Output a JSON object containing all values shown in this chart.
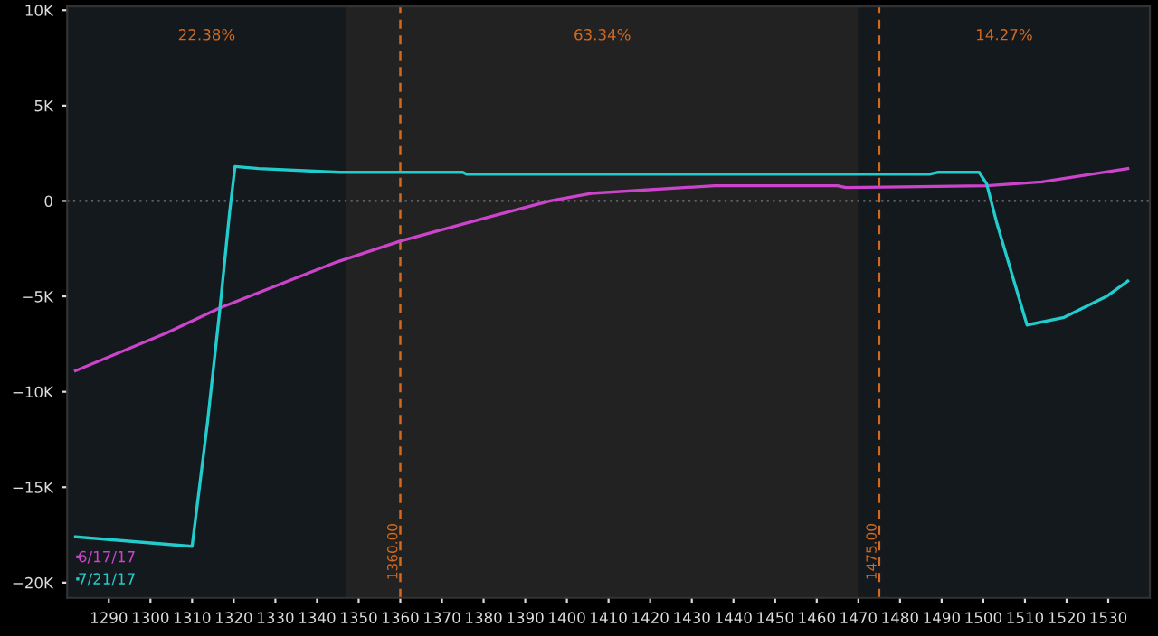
{
  "chart_data": {
    "type": "line",
    "xlim": [
      1280,
      1540
    ],
    "ylim": [
      -20800,
      10200
    ],
    "xticks": [
      1290,
      1300,
      1310,
      1320,
      1330,
      1340,
      1350,
      1360,
      1370,
      1380,
      1390,
      1400,
      1410,
      1420,
      1430,
      1440,
      1450,
      1460,
      1470,
      1480,
      1490,
      1500,
      1510,
      1520,
      1530
    ],
    "yticks": [
      {
        "value": 10000,
        "label": "10K"
      },
      {
        "value": 5000,
        "label": "5K"
      },
      {
        "value": 0,
        "label": "0"
      },
      {
        "value": -5000,
        "label": "−5K"
      },
      {
        "value": -10000,
        "label": "−10K"
      },
      {
        "value": -15000,
        "label": "−15K"
      },
      {
        "value": -20000,
        "label": "−20K"
      }
    ],
    "grid": false,
    "legend": "bottom left",
    "marker": "none",
    "line_style": "solid",
    "bands": [
      {
        "axis": "x",
        "from": 1280,
        "to": 1347,
        "label": "22.38%",
        "color": "#14191d"
      },
      {
        "axis": "x",
        "from": 1347,
        "to": 1470,
        "label": "63.34%",
        "color": "#222222"
      },
      {
        "axis": "x",
        "from": 1470,
        "to": 1540,
        "label": "14.27%",
        "color": "#14191d"
      }
    ],
    "ref_lines": [
      {
        "axis": "x",
        "value": 1360,
        "label": "1360.00",
        "color": "#d2691e",
        "line_style": "dashed"
      },
      {
        "axis": "x",
        "value": 1475,
        "label": "1475.00",
        "color": "#d2691e",
        "line_style": "dashed"
      },
      {
        "axis": "y",
        "value": 0,
        "label": null,
        "color": "#777777",
        "line_style": "dotted"
      }
    ],
    "series": [
      {
        "name": "6/17/17",
        "color": "#cc44cc",
        "x": [
          1282,
          1304,
          1316.7,
          1344.7,
          1360,
          1382,
          1396,
          1405.8,
          1435.5,
          1465,
          1467,
          1500.8,
          1514,
          1534.7
        ],
        "values": [
          -8900,
          -6900,
          -5600,
          -3200,
          -2100,
          -800,
          0,
          400,
          800,
          800,
          700,
          800,
          1000,
          1700
        ]
      },
      {
        "name": "7/21/17",
        "color": "#22cccc",
        "x": [
          1282,
          1310,
          1313.7,
          1316.7,
          1319,
          1320.3,
          1326,
          1345.5,
          1375,
          1376,
          1487,
          1489,
          1499,
          1500.8,
          1503.3,
          1510.5,
          1519.4,
          1529.6,
          1534.7
        ],
        "values": [
          -17600,
          -18100,
          -11600,
          -5600,
          -600,
          1800,
          1700,
          1500,
          1500,
          1400,
          1400,
          1500,
          1500,
          900,
          -1200,
          -6500,
          -6100,
          -5000,
          -4200
        ]
      }
    ]
  }
}
